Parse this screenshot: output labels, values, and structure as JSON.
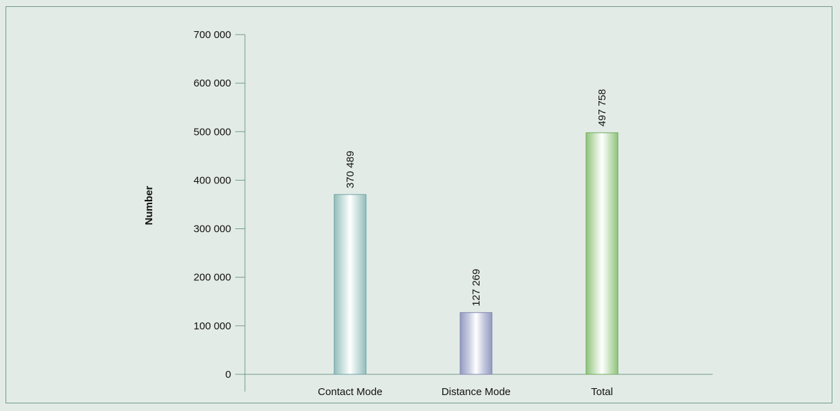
{
  "chart_data": {
    "type": "bar",
    "categories": [
      "Contact Mode",
      "Distance Mode",
      "Total"
    ],
    "values": [
      370489,
      127269,
      497758
    ],
    "value_labels": [
      "370 489",
      "127 269",
      "497 758"
    ],
    "title": "",
    "xlabel": "",
    "ylabel": "Number",
    "ylim": [
      0,
      700000
    ],
    "yticks": [
      0,
      100000,
      200000,
      300000,
      400000,
      500000,
      600000,
      700000
    ],
    "ytick_labels": [
      "0",
      "100 000",
      "200 000",
      "300 000",
      "400 000",
      "500 000",
      "600 000",
      "700 000"
    ],
    "grid": false,
    "legend": "none",
    "bar_colors": [
      {
        "edge": "#6ea3a3",
        "light": "#ffffff",
        "mid": "#cfe3e1",
        "dark": "#93bdbb"
      },
      {
        "edge": "#7f86ad",
        "light": "#ffffff",
        "mid": "#c9cde1",
        "dark": "#939ac0"
      },
      {
        "edge": "#6faa5c",
        "light": "#ffffff",
        "mid": "#cfe5c6",
        "dark": "#8ec37c"
      }
    ],
    "axis_color": "#6f9c86",
    "background": "#e3ebe7"
  }
}
